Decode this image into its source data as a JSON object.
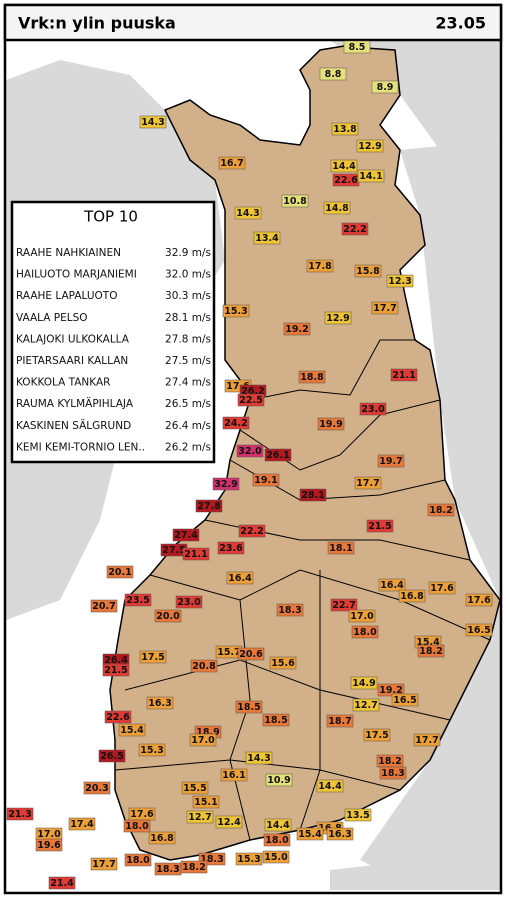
{
  "header": {
    "title": "Vrk:n ylin puuska",
    "date": "23.05"
  },
  "top10": {
    "title": "TOP 10",
    "rows": [
      {
        "station": "RAAHE NAHKIAINEN",
        "value": "32.9 m/s"
      },
      {
        "station": "HAILUOTO MARJANIEMI",
        "value": "32.0 m/s"
      },
      {
        "station": "RAAHE LAPALUOTO",
        "value": "30.3 m/s"
      },
      {
        "station": "VAALA PELSO",
        "value": "28.1 m/s"
      },
      {
        "station": "KALAJOKI ULKOKALLA",
        "value": "27.8 m/s"
      },
      {
        "station": "PIETARSAARI KALLAN",
        "value": "27.5 m/s"
      },
      {
        "station": "KOKKOLA TANKAR",
        "value": "27.4 m/s"
      },
      {
        "station": "RAUMA KYLMÄPIHLAJA",
        "value": "26.5 m/s"
      },
      {
        "station": "KASKINEN SÄLGRUND",
        "value": "26.4 m/s"
      },
      {
        "station": "KEMI KEMI-TORNIO LEN..",
        "value": "26.2 m/s"
      }
    ]
  },
  "stations": [
    "8.5",
    "8.8",
    "8.9",
    "14.3",
    "13.8",
    "12.9",
    "16.7",
    "14.4",
    "22.6",
    "14.1",
    "10.8",
    "14.3",
    "14.8",
    "22.2",
    "13.4",
    "17.8",
    "15.8",
    "12.3",
    "15.3",
    "17.7",
    "12.9",
    "19.2",
    "18.8",
    "21.1",
    "17.6",
    "26.2",
    "22.5",
    "23.0",
    "24.2",
    "19.9",
    "32.0",
    "26.1",
    "19.7",
    "32.9",
    "19.1",
    "17.7",
    "28.1",
    "27.8",
    "18.2",
    "21.5",
    "22.2",
    "27.4",
    "27.5",
    "21.1",
    "23.6",
    "18.1",
    "20.1",
    "16.4",
    "16.4",
    "17.6",
    "16.8",
    "17.6",
    "23.5",
    "23.0",
    "20.7",
    "18.3",
    "22.7",
    "17.0",
    "20.0",
    "18.0",
    "16.5",
    "15.4",
    "18.2",
    "26.4",
    "17.5",
    "15.7",
    "20.6",
    "15.6",
    "20.8",
    "21.5",
    "14.9",
    "19.2",
    "16.5",
    "16.3",
    "18.5",
    "12.7",
    "22.6",
    "18.5",
    "18.7",
    "15.4",
    "18.9",
    "17.0",
    "17.5",
    "17.7",
    "15.3",
    "26.5",
    "14.3",
    "18.2",
    "18.3",
    "16.1",
    "10.9",
    "14.4",
    "20.3",
    "15.5",
    "15.1",
    "21.3",
    "13.5",
    "12.7",
    "12.4",
    "14.4",
    "17.6",
    "18.0",
    "17.4",
    "16.8",
    "16.3",
    "18.0",
    "17.0",
    "16.8",
    "19.6",
    "15.4",
    "18.3",
    "15.3",
    "15.0",
    "17.7",
    "18.0",
    "18.3",
    "18.2",
    "21.4"
  ]
}
